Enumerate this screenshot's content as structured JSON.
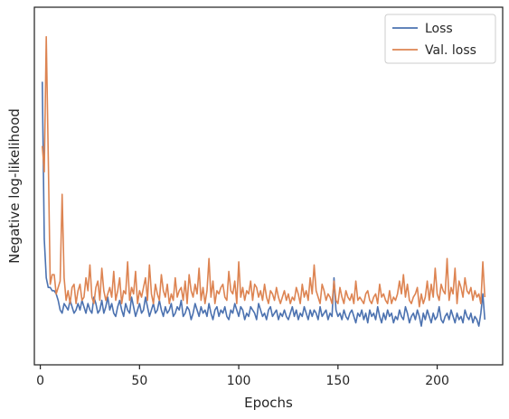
{
  "chart_data": {
    "type": "line",
    "title": "",
    "xlabel": "Epochs",
    "ylabel": "Negative log-likelihood",
    "xlim": [
      -3,
      233
    ],
    "ylim": [
      0,
      100
    ],
    "xticks": [
      0,
      50,
      100,
      150,
      200
    ],
    "yticks": [],
    "grid": false,
    "legend": "top-right",
    "series": [
      {
        "name": "Loss",
        "color": "#4c72b0",
        "x": [
          1,
          2,
          3,
          4,
          5,
          6,
          7,
          8,
          9,
          10,
          11,
          12,
          13,
          14,
          15,
          16,
          17,
          18,
          19,
          20,
          21,
          22,
          23,
          24,
          25,
          26,
          27,
          28,
          29,
          30,
          31,
          32,
          33,
          34,
          35,
          36,
          37,
          38,
          39,
          40,
          41,
          42,
          43,
          44,
          45,
          46,
          47,
          48,
          49,
          50,
          51,
          52,
          53,
          54,
          55,
          56,
          57,
          58,
          59,
          60,
          61,
          62,
          63,
          64,
          65,
          66,
          67,
          68,
          69,
          70,
          71,
          72,
          73,
          74,
          75,
          76,
          77,
          78,
          79,
          80,
          81,
          82,
          83,
          84,
          85,
          86,
          87,
          88,
          89,
          90,
          91,
          92,
          93,
          94,
          95,
          96,
          97,
          98,
          99,
          100,
          101,
          102,
          103,
          104,
          105,
          106,
          107,
          108,
          109,
          110,
          111,
          112,
          113,
          114,
          115,
          116,
          117,
          118,
          119,
          120,
          121,
          122,
          123,
          124,
          125,
          126,
          127,
          128,
          129,
          130,
          131,
          132,
          133,
          134,
          135,
          136,
          137,
          138,
          139,
          140,
          141,
          142,
          143,
          144,
          145,
          146,
          147,
          148,
          149,
          150,
          151,
          152,
          153,
          154,
          155,
          156,
          157,
          158,
          159,
          160,
          161,
          162,
          163,
          164,
          165,
          166,
          167,
          168,
          169,
          170,
          171,
          172,
          173,
          174,
          175,
          176,
          177,
          178,
          179,
          180,
          181,
          182,
          183,
          184,
          185,
          186,
          187,
          188,
          189,
          190,
          191,
          192,
          193,
          194,
          195,
          196,
          197,
          198,
          199,
          200,
          201,
          202,
          203,
          204,
          205,
          206,
          207,
          208,
          209,
          210,
          211,
          212,
          213,
          214,
          215,
          216,
          217,
          218,
          219,
          220,
          221,
          222,
          223,
          224
        ],
        "values": [
          83,
          34,
          22,
          19,
          19,
          18,
          18,
          17,
          15,
          12,
          11,
          14,
          13,
          12,
          15,
          13,
          11,
          12,
          14,
          12,
          15,
          13,
          11,
          14,
          12,
          11,
          16,
          14,
          11,
          12,
          15,
          11,
          13,
          16,
          12,
          14,
          11,
          10,
          13,
          15,
          12,
          10,
          14,
          12,
          11,
          16,
          13,
          10,
          12,
          14,
          11,
          12,
          16,
          13,
          10,
          12,
          14,
          11,
          12,
          15,
          12,
          10,
          13,
          11,
          12,
          14,
          10,
          11,
          13,
          12,
          15,
          10,
          11,
          13,
          12,
          9,
          11,
          14,
          12,
          10,
          13,
          11,
          12,
          10,
          14,
          11,
          9,
          12,
          13,
          10,
          12,
          11,
          13,
          10,
          9,
          12,
          11,
          14,
          12,
          10,
          13,
          12,
          9,
          11,
          10,
          13,
          12,
          11,
          9,
          14,
          12,
          10,
          11,
          9,
          12,
          13,
          10,
          11,
          12,
          9,
          11,
          10,
          12,
          10,
          9,
          11,
          13,
          10,
          12,
          9,
          11,
          10,
          13,
          11,
          9,
          12,
          10,
          12,
          11,
          9,
          13,
          10,
          11,
          12,
          9,
          11,
          10,
          22,
          12,
          10,
          11,
          9,
          12,
          10,
          9,
          11,
          12,
          10,
          8,
          11,
          10,
          12,
          9,
          11,
          8,
          12,
          10,
          11,
          9,
          13,
          10,
          8,
          11,
          9,
          12,
          10,
          11,
          8,
          10,
          9,
          12,
          10,
          9,
          13,
          11,
          8,
          10,
          11,
          9,
          12,
          10,
          7,
          11,
          9,
          12,
          10,
          8,
          11,
          9,
          10,
          13,
          9,
          8,
          10,
          11,
          9,
          12,
          10,
          8,
          11,
          9,
          10,
          8,
          12,
          10,
          9,
          11,
          8,
          10,
          9,
          7,
          11,
          17,
          9
        ]
      },
      {
        "name": "Val. loss",
        "color": "#dd8452",
        "x": [
          1,
          2,
          3,
          4,
          5,
          6,
          7,
          8,
          9,
          10,
          11,
          12,
          13,
          14,
          15,
          16,
          17,
          18,
          19,
          20,
          21,
          22,
          23,
          24,
          25,
          26,
          27,
          28,
          29,
          30,
          31,
          32,
          33,
          34,
          35,
          36,
          37,
          38,
          39,
          40,
          41,
          42,
          43,
          44,
          45,
          46,
          47,
          48,
          49,
          50,
          51,
          52,
          53,
          54,
          55,
          56,
          57,
          58,
          59,
          60,
          61,
          62,
          63,
          64,
          65,
          66,
          67,
          68,
          69,
          70,
          71,
          72,
          73,
          74,
          75,
          76,
          77,
          78,
          79,
          80,
          81,
          82,
          83,
          84,
          85,
          86,
          87,
          88,
          89,
          90,
          91,
          92,
          93,
          94,
          95,
          96,
          97,
          98,
          99,
          100,
          101,
          102,
          103,
          104,
          105,
          106,
          107,
          108,
          109,
          110,
          111,
          112,
          113,
          114,
          115,
          116,
          117,
          118,
          119,
          120,
          121,
          122,
          123,
          124,
          125,
          126,
          127,
          128,
          129,
          130,
          131,
          132,
          133,
          134,
          135,
          136,
          137,
          138,
          139,
          140,
          141,
          142,
          143,
          144,
          145,
          146,
          147,
          148,
          149,
          150,
          151,
          152,
          153,
          154,
          155,
          156,
          157,
          158,
          159,
          160,
          161,
          162,
          163,
          164,
          165,
          166,
          167,
          168,
          169,
          170,
          171,
          172,
          173,
          174,
          175,
          176,
          177,
          178,
          179,
          180,
          180,
          181,
          182,
          183,
          184,
          185,
          186,
          187,
          188,
          189,
          190,
          191,
          192,
          193,
          194,
          195,
          196,
          197,
          198,
          199,
          200,
          201,
          202,
          203,
          204,
          205,
          206,
          207,
          208,
          209,
          210,
          211,
          212,
          213,
          214,
          215,
          216,
          217,
          218,
          219,
          220,
          221,
          222,
          223,
          224
        ],
        "values": [
          63,
          55,
          97,
          60,
          20,
          23,
          23,
          17,
          19,
          21,
          48,
          22,
          15,
          18,
          14,
          19,
          20,
          14,
          18,
          20,
          15,
          16,
          22,
          18,
          26,
          16,
          14,
          19,
          21,
          15,
          25,
          18,
          15,
          17,
          19,
          16,
          24,
          15,
          18,
          22,
          14,
          18,
          17,
          27,
          15,
          19,
          17,
          24,
          14,
          18,
          16,
          19,
          22,
          15,
          26,
          17,
          14,
          20,
          17,
          15,
          23,
          18,
          16,
          20,
          14,
          17,
          15,
          22,
          16,
          18,
          19,
          15,
          21,
          14,
          23,
          18,
          16,
          20,
          17,
          25,
          15,
          19,
          14,
          18,
          28,
          16,
          21,
          14,
          18,
          17,
          19,
          20,
          16,
          15,
          24,
          18,
          17,
          21,
          14,
          27,
          16,
          19,
          15,
          18,
          17,
          21,
          15,
          20,
          19,
          16,
          18,
          15,
          20,
          16,
          14,
          18,
          17,
          15,
          19,
          16,
          14,
          16,
          18,
          15,
          17,
          14,
          16,
          15,
          19,
          17,
          14,
          20,
          16,
          18,
          15,
          22,
          17,
          26,
          18,
          16,
          14,
          20,
          18,
          15,
          17,
          16,
          14,
          21,
          15,
          14,
          19,
          16,
          14,
          18,
          16,
          15,
          17,
          14,
          21,
          15,
          16,
          15,
          14,
          17,
          18,
          15,
          14,
          16,
          17,
          14,
          20,
          16,
          17,
          15,
          14,
          18,
          14,
          16,
          15,
          17,
          17,
          21,
          17,
          23,
          16,
          20,
          15,
          14,
          16,
          17,
          19,
          13,
          17,
          14,
          16,
          21,
          15,
          20,
          16,
          25,
          17,
          15,
          20,
          18,
          17,
          28,
          15,
          19,
          17,
          25,
          14,
          21,
          19,
          16,
          22,
          18,
          17,
          19,
          15,
          18,
          16,
          17,
          14,
          27,
          16
        ]
      }
    ]
  }
}
